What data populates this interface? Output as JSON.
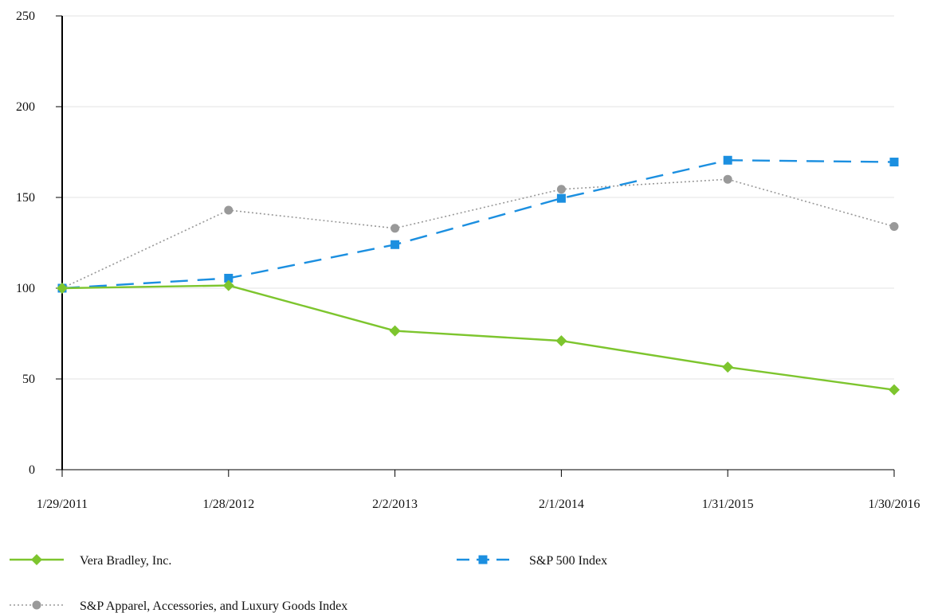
{
  "chart_data": {
    "type": "line",
    "categories": [
      "1/29/2011",
      "1/28/2012",
      "2/2/2013",
      "2/1/2014",
      "1/31/2015",
      "1/30/2016"
    ],
    "ylim": [
      0,
      250
    ],
    "yticks": [
      0,
      50,
      100,
      150,
      200,
      250
    ],
    "grid": true,
    "legend_position": "bottom",
    "series": [
      {
        "name": "Vera Bradley, Inc.",
        "values": [
          100,
          101.5,
          76.5,
          71,
          56.5,
          44
        ],
        "color": "#7dc52e",
        "line_style": "solid",
        "marker": "diamond"
      },
      {
        "name": "S&P 500 Index",
        "values": [
          100,
          105.5,
          124,
          149.5,
          170.5,
          169.5
        ],
        "color": "#1b8fe0",
        "line_style": "dashed",
        "marker": "square"
      },
      {
        "name": "S&P Apparel, Accessories, and Luxury Goods Index",
        "values": [
          100,
          143,
          133,
          154.5,
          160,
          134
        ],
        "color": "#999999",
        "line_style": "dotted",
        "marker": "circle"
      }
    ]
  }
}
